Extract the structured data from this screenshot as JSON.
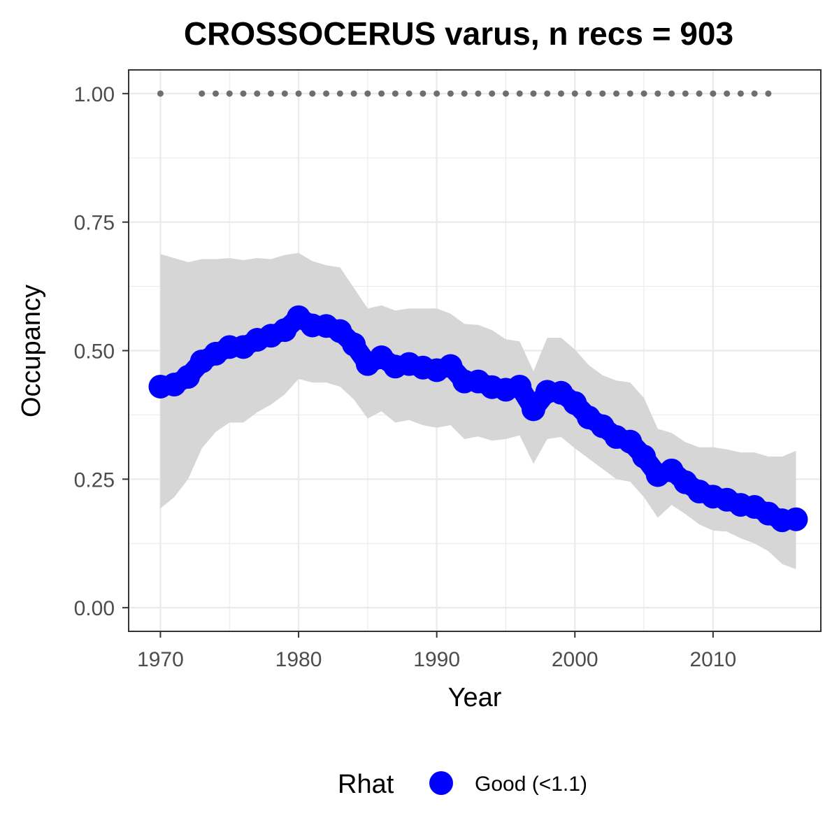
{
  "chart_data": {
    "type": "line",
    "title": "CROSSOCERUS varus, n recs = 903",
    "xlabel": "Year",
    "ylabel": "Occupancy",
    "xlim": [
      1967.7,
      1917.8
    ],
    "ylim": [
      -0.046,
      1.046
    ],
    "x_ticks": [
      1970,
      1980,
      1990,
      2000,
      2010
    ],
    "x_tick_labels": [
      "1970",
      "1980",
      "1990",
      "2000",
      "2010"
    ],
    "y_ticks": [
      0,
      0.25,
      0.5,
      0.75,
      1.0
    ],
    "y_tick_labels": [
      "0.00",
      "0.25",
      "0.50",
      "0.75",
      "1.00"
    ],
    "grid": true,
    "legend": {
      "title": "Rhat",
      "position": "bottom",
      "entries": [
        {
          "label": "Good (<1.1)",
          "color": "#0000ff"
        }
      ]
    },
    "colors": {
      "mean": "#0000ff",
      "ribbon": "#d6d6d6",
      "records": "#6e6e6e",
      "grid": "#ebebeb",
      "border": "#333333"
    },
    "series": [
      {
        "name": "Good (<1.1)",
        "x": [
          1970,
          1971,
          1972,
          1973,
          1974,
          1975,
          1976,
          1977,
          1978,
          1979,
          1980,
          1981,
          1982,
          1983,
          1984,
          1985,
          1986,
          1987,
          1988,
          1989,
          1990,
          1991,
          1992,
          1993,
          1994,
          1995,
          1996,
          1997,
          1998,
          1999,
          2000,
          2001,
          2002,
          2003,
          2004,
          2005,
          2006,
          2007,
          2008,
          2009,
          2010,
          2011,
          2012,
          2013,
          2014,
          2015,
          2016
        ],
        "y": [
          0.43,
          0.434,
          0.449,
          0.479,
          0.494,
          0.507,
          0.507,
          0.521,
          0.529,
          0.54,
          0.565,
          0.549,
          0.548,
          0.538,
          0.512,
          0.474,
          0.487,
          0.469,
          0.474,
          0.467,
          0.462,
          0.47,
          0.44,
          0.44,
          0.429,
          0.424,
          0.43,
          0.386,
          0.42,
          0.418,
          0.398,
          0.37,
          0.353,
          0.332,
          0.323,
          0.294,
          0.258,
          0.267,
          0.244,
          0.226,
          0.216,
          0.21,
          0.2,
          0.196,
          0.183,
          0.17,
          0.172
        ],
        "lower": [
          0.193,
          0.215,
          0.25,
          0.31,
          0.342,
          0.36,
          0.36,
          0.38,
          0.395,
          0.415,
          0.445,
          0.438,
          0.438,
          0.43,
          0.405,
          0.368,
          0.382,
          0.36,
          0.365,
          0.355,
          0.35,
          0.355,
          0.328,
          0.333,
          0.325,
          0.328,
          0.335,
          0.28,
          0.328,
          0.332,
          0.31,
          0.29,
          0.27,
          0.25,
          0.245,
          0.215,
          0.175,
          0.2,
          0.182,
          0.162,
          0.15,
          0.148,
          0.135,
          0.125,
          0.11,
          0.085,
          0.075
        ],
        "upper": [
          0.688,
          0.68,
          0.672,
          0.678,
          0.678,
          0.68,
          0.676,
          0.68,
          0.678,
          0.686,
          0.69,
          0.674,
          0.666,
          0.662,
          0.622,
          0.582,
          0.588,
          0.578,
          0.582,
          0.582,
          0.582,
          0.572,
          0.552,
          0.55,
          0.54,
          0.522,
          0.518,
          0.46,
          0.525,
          0.525,
          0.502,
          0.472,
          0.452,
          0.442,
          0.438,
          0.408,
          0.348,
          0.34,
          0.322,
          0.312,
          0.312,
          0.308,
          0.302,
          0.302,
          0.294,
          0.294,
          0.305
        ]
      }
    ],
    "records": {
      "x": [
        1970,
        1973,
        1974,
        1975,
        1976,
        1977,
        1978,
        1979,
        1980,
        1981,
        1982,
        1983,
        1984,
        1985,
        1986,
        1987,
        1988,
        1989,
        1990,
        1991,
        1992,
        1993,
        1994,
        1995,
        1996,
        1997,
        1998,
        1999,
        2000,
        2001,
        2002,
        2003,
        2004,
        2005,
        2006,
        2007,
        2008,
        2009,
        2010,
        2011,
        2012,
        2013,
        2014
      ],
      "y": 1.0
    }
  }
}
